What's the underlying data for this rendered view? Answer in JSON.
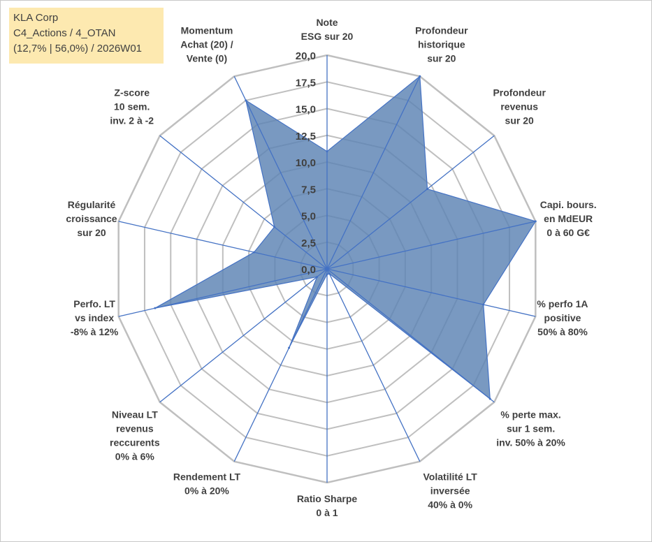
{
  "info": {
    "line1": "KLA Corp",
    "line2": "C4_Actions / 4_OTAN",
    "line3": "(12,7% | 56,0%) / 2026W01"
  },
  "colors": {
    "fill": "#5b82b3",
    "stroke": "#4472c4",
    "grid": "#bfbfbf",
    "text": "#404040",
    "info_bg": "#fde9b0"
  },
  "chart_data": {
    "type": "radar",
    "title": "",
    "rmin": 0,
    "rmax": 20,
    "ticks": [
      "0,0",
      "2,5",
      "5,0",
      "7,5",
      "10,0",
      "12,5",
      "15,0",
      "17,5",
      "20,0"
    ],
    "categories": [
      [
        "Note",
        "ESG sur 20"
      ],
      [
        "Profondeur",
        "historique",
        "sur 20"
      ],
      [
        "Profondeur",
        "revenus",
        "sur 20"
      ],
      [
        "Capi. bours.",
        "en MdEUR",
        "0 à 60 G€"
      ],
      [
        "% perfo 1A",
        "positive",
        "50% à 80%"
      ],
      [
        "% perte max.",
        "sur 1 sem.",
        "inv. 50% à 20%"
      ],
      [
        "Volatilité LT",
        "inversée",
        "40% à 0%"
      ],
      [
        "Ratio Sharpe",
        "0 à 1"
      ],
      [
        "Rendement LT",
        "0% à 20%"
      ],
      [
        "Niveau LT",
        "revenus",
        "reccurents",
        "0% à 6%"
      ],
      [
        "Perfo. LT",
        "vs index",
        "-8% à 12%"
      ],
      [
        "Régularité",
        "croissance",
        "sur 20"
      ],
      [
        "Z-score",
        "10 sem.",
        "inv. 2 à -2"
      ],
      [
        "Momentum",
        "Achat (20) /",
        "Vente (0)"
      ]
    ],
    "series": [
      {
        "name": "KLA Corp",
        "values": [
          11.0,
          20.0,
          12.0,
          20.0,
          15.0,
          19.5,
          0.5,
          0.5,
          8.2,
          1.2,
          16.5,
          7.0,
          6.3,
          17.5
        ]
      }
    ]
  }
}
